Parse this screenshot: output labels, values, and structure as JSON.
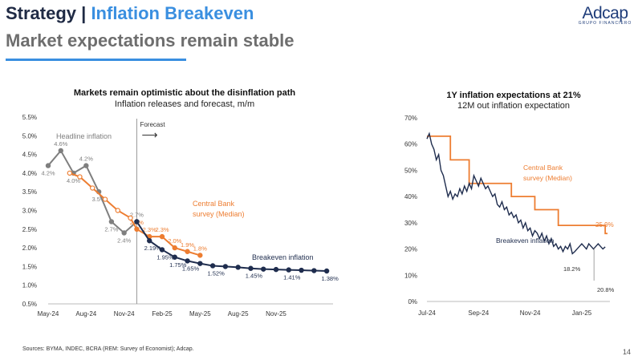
{
  "header": {
    "title_main": "Strategy |",
    "title_accent": "Inflation Breakeven",
    "subtitle": "Market expectations remain stable",
    "logo_name": "Adcap",
    "logo_sub": "GRUPO FINANCIERO"
  },
  "footer": {
    "sources": "Sources: BYMA, INDEC, BCRA (REM: Survey of Economist); Adcap.",
    "page_number": "14"
  },
  "colors": {
    "navy": "#1f2a44",
    "accent": "#3a8fe0",
    "gray": "#7f7f7f",
    "orange": "#ed7d31",
    "dark_navy": "#1f2d4e"
  },
  "chart_data": [
    {
      "type": "line",
      "title": "Markets remain optimistic about the disinflation path",
      "subtitle": "Inflation releases and forecast, m/m",
      "y_ticks": [
        "5.5%",
        "5.0%",
        "4.5%",
        "4.0%",
        "3.5%",
        "3.0%",
        "2.5%",
        "2.0%",
        "1.5%",
        "1.0%",
        "0.5%"
      ],
      "ylim": [
        0.5,
        5.5
      ],
      "x_ticks": [
        "May-24",
        "Aug-24",
        "Nov-24",
        "Feb-25",
        "May-25",
        "Aug-25",
        "Nov-25"
      ],
      "forecast_label": "Forecast",
      "forecast_arrow": "⟶",
      "series": [
        {
          "name": "Headline inflation",
          "x": [
            0,
            1,
            2,
            3,
            4,
            5,
            6,
            7
          ],
          "values": [
            4.2,
            4.6,
            4.0,
            4.2,
            3.5,
            2.7,
            2.4,
            2.7
          ],
          "labels": [
            "4.2%",
            "4.6%",
            "4.0%",
            "4.2%",
            "3.5%",
            "2.7%",
            "2.4%",
            "2.7%"
          ]
        },
        {
          "name": "Central Bank survey (Median)",
          "x": [
            1.7,
            2.5,
            3.5,
            4.5,
            5.5,
            6.5,
            7,
            8,
            9,
            10,
            11,
            12
          ],
          "values": [
            4.0,
            3.9,
            3.6,
            3.3,
            3.0,
            2.8,
            2.5,
            2.3,
            2.3,
            2.0,
            1.9,
            1.8
          ],
          "labels": [
            "",
            "",
            "",
            "",
            "",
            "",
            "2.5%",
            "2.3%",
            "2.3%",
            "2.0%",
            "1.9%",
            "1.8%"
          ]
        },
        {
          "name": "Breakeven inflation",
          "x": [
            7,
            8,
            9,
            10,
            11,
            12,
            13,
            14,
            15,
            16,
            17,
            18,
            19,
            20,
            21,
            22
          ],
          "values": [
            2.7,
            2.19,
            1.95,
            1.75,
            1.65,
            1.58,
            1.52,
            1.5,
            1.48,
            1.45,
            1.43,
            1.42,
            1.41,
            1.4,
            1.39,
            1.38
          ],
          "labels": [
            "",
            "2.19%",
            "1.95%",
            "1.75%",
            "1.65%",
            "",
            "1.52%",
            "",
            "",
            "1.45%",
            "",
            "",
            "1.41%",
            "",
            "",
            "1.38%"
          ]
        }
      ]
    },
    {
      "type": "line",
      "title": "1Y inflation expectations at 21%",
      "subtitle": "12M out inflation expectation",
      "y_ticks": [
        "70%",
        "60%",
        "50%",
        "40%",
        "30%",
        "20%",
        "10%",
        "0%"
      ],
      "ylim": [
        0,
        70
      ],
      "x_ticks": [
        "Jul-24",
        "Sep-24",
        "Nov-24",
        "Jan-25"
      ],
      "series": [
        {
          "name": "Central Bank survey (Median)",
          "x": [
            0,
            0.5,
            0.9,
            1.3,
            1.8,
            2.3,
            2.8,
            3.3,
            3.8
          ],
          "values": [
            63,
            54,
            45,
            45,
            40,
            35,
            29,
            29,
            25.9
          ]
        },
        {
          "name": "Breakeven inflation",
          "x": [
            0,
            0.05,
            0.1,
            0.15,
            0.2,
            0.25,
            0.3,
            0.35,
            0.4,
            0.45,
            0.5,
            0.55,
            0.6,
            0.65,
            0.7,
            0.75,
            0.8,
            0.85,
            0.9,
            0.95,
            1.0,
            1.05,
            1.1,
            1.15,
            1.2,
            1.25,
            1.3,
            1.35,
            1.4,
            1.45,
            1.5,
            1.55,
            1.6,
            1.65,
            1.7,
            1.75,
            1.8,
            1.85,
            1.9,
            1.95,
            2.0,
            2.05,
            2.1,
            2.15,
            2.2,
            2.25,
            2.3,
            2.35,
            2.4,
            2.45,
            2.5,
            2.55,
            2.6,
            2.65,
            2.7,
            2.75,
            2.8,
            2.85,
            2.9,
            2.95,
            3.0,
            3.05,
            3.1,
            3.15,
            3.2,
            3.25,
            3.3,
            3.35,
            3.4,
            3.45,
            3.5,
            3.55,
            3.6,
            3.65,
            3.7,
            3.75,
            3.8
          ],
          "values": [
            62,
            64,
            60,
            58,
            54,
            56,
            50,
            48,
            44,
            40,
            42,
            39,
            41,
            40,
            43,
            41,
            44,
            42,
            45,
            43,
            48,
            46,
            44,
            47,
            45,
            43,
            44,
            42,
            40,
            41,
            37,
            36,
            38,
            35,
            36,
            33,
            34,
            32,
            33,
            30,
            31,
            28,
            30,
            27,
            28,
            25,
            27,
            26,
            24,
            26,
            23,
            25,
            22,
            24,
            21,
            22,
            20,
            21,
            19,
            21,
            20,
            22,
            18.2,
            19,
            20,
            21,
            22,
            21,
            20,
            22,
            21,
            20,
            21,
            22,
            21,
            20,
            20.8
          ],
          "labels": [
            "18.2%",
            "20.8%"
          ]
        }
      ],
      "end_labels": [
        "25.9%"
      ]
    }
  ]
}
